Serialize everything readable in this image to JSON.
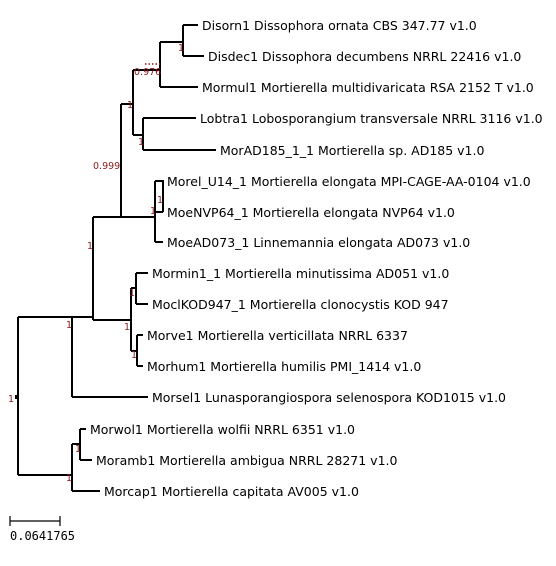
{
  "leaves": [
    {
      "id": "disorn",
      "label": "Disorn1 Dissophora ornata CBS 347.77 v1.0"
    },
    {
      "id": "disdec",
      "label": "Disdec1 Dissophora decumbens NRRL 22416 v1.0"
    },
    {
      "id": "mormul",
      "label": "Mormul1 Mortierella multidivaricata RSA 2152 T v1.0"
    },
    {
      "id": "lobtra",
      "label": "Lobtra1 Lobosporangium transversale NRRL 3116 v1.0"
    },
    {
      "id": "morad185",
      "label": "MorAD185_1_1 Mortierella sp. AD185 v1.0"
    },
    {
      "id": "morel",
      "label": "Morel_U14_1 Mortierella elongata MPI-CAGE-AA-0104 v1.0"
    },
    {
      "id": "moenvp64",
      "label": "MoeNVP64_1 Mortierella elongata NVP64 v1.0"
    },
    {
      "id": "moead073",
      "label": "MoeAD073_1 Linnemannia elongata AD073 v1.0"
    },
    {
      "id": "mormin",
      "label": "Mormin1_1 Mortierella minutissima AD051 v1.0"
    },
    {
      "id": "moclkod",
      "label": "MoclKOD947_1 Mortierella clonocystis KOD 947"
    },
    {
      "id": "morve",
      "label": "Morve1 Mortierella verticillata NRRL 6337"
    },
    {
      "id": "morhum",
      "label": "Morhum1 Mortierella humilis PMI_1414 v1.0"
    },
    {
      "id": "morsel",
      "label": "Morsel1 Lunasporangiospora selenospora KOD1015 v1.0"
    },
    {
      "id": "morwol",
      "label": "Morwol1 Mortierella wolfii NRRL 6351 v1.0"
    },
    {
      "id": "moramb",
      "label": "Moramb1 Mortierella ambigua NRRL 28271 v1.0"
    },
    {
      "id": "morcap",
      "label": "Morcap1 Mortierella capitata AV005 v1.0"
    }
  ],
  "support_values": {
    "root": "1",
    "dissophora": "1",
    "multidivaricata_clade": "0.976",
    "lobo_clade": "1",
    "big_clade": "0.999",
    "elongata_clade": "1",
    "elongata_sub": "1",
    "elongata_inner": "1",
    "main_upper": "1",
    "minutissima_clade": "1",
    "minutissima_pair": "1",
    "verticillata_pair": "1",
    "lower_group": "1",
    "wolfii_pair": "1"
  },
  "scale_bar": {
    "label": "0.0641765"
  }
}
